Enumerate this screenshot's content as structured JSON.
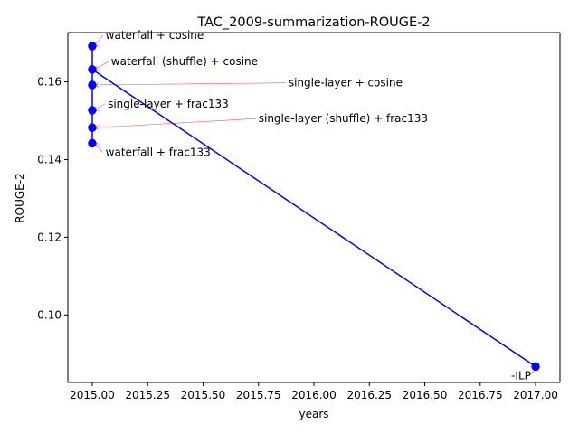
{
  "chart_data": {
    "type": "scatter",
    "title": "TAC_2009-summarization-ROUGE-2",
    "xlabel": "years",
    "ylabel": "ROUGE-2",
    "xlim": [
      2014.89,
      2017.11
    ],
    "ylim": [
      0.0826,
      0.1727
    ],
    "grid": false,
    "x_ticks": [
      {
        "value": 2015.0,
        "label": "2015.00"
      },
      {
        "value": 2015.25,
        "label": "2015.25"
      },
      {
        "value": 2015.5,
        "label": "2015.50"
      },
      {
        "value": 2015.75,
        "label": "2015.75"
      },
      {
        "value": 2016.0,
        "label": "2016.00"
      },
      {
        "value": 2016.25,
        "label": "2016.25"
      },
      {
        "value": 2016.5,
        "label": "2016.50"
      },
      {
        "value": 2016.75,
        "label": "2016.75"
      },
      {
        "value": 2017.0,
        "label": "2017.00"
      }
    ],
    "y_ticks": [
      {
        "value": 0.1,
        "label": "0.10"
      },
      {
        "value": 0.12,
        "label": "0.12"
      },
      {
        "value": 0.14,
        "label": "0.14"
      },
      {
        "value": 0.16,
        "label": "0.16"
      }
    ],
    "line_color": "#0000ff",
    "marker_color": "#0000ff",
    "annotation_arrow_color": "#ff0000",
    "points": [
      {
        "x": 2015.0,
        "y": 0.1692,
        "label": "waterfall + cosine",
        "text_x": 2015.06,
        "text_y": 0.1711
      },
      {
        "x": 2015.0,
        "y": 0.1632,
        "label": "waterfall (shuffle) + cosine",
        "text_x": 2015.085,
        "text_y": 0.1643
      },
      {
        "x": 2015.0,
        "y": 0.1592,
        "label": "single-layer + cosine",
        "text_x": 2015.885,
        "text_y": 0.1588
      },
      {
        "x": 2015.0,
        "y": 0.1527,
        "label": "single-layer + frac133",
        "text_x": 2015.07,
        "text_y": 0.1534
      },
      {
        "x": 2015.0,
        "y": 0.1482,
        "label": "single-layer (shuffle) + frac133",
        "text_x": 2015.75,
        "text_y": 0.1496
      },
      {
        "x": 2015.0,
        "y": 0.1442,
        "label": "waterfall + frac133",
        "text_x": 2015.06,
        "text_y": 0.1409
      },
      {
        "x": 2017.0,
        "y": 0.0867,
        "label": "-ILP",
        "text_x": 2016.89,
        "text_y": 0.0834
      }
    ],
    "line_order": [
      6,
      1,
      0,
      2,
      3,
      4,
      5
    ]
  }
}
